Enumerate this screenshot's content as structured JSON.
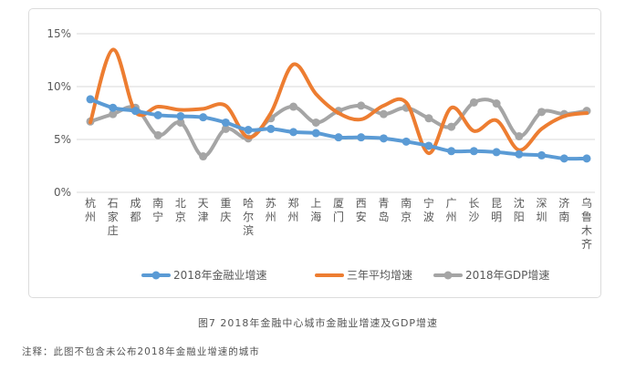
{
  "chart_data": {
    "type": "line",
    "categories": [
      "杭州",
      "石家庄",
      "成都",
      "南宁",
      "北京",
      "天津",
      "重庆",
      "哈尔滨",
      "苏州",
      "郑州",
      "上海",
      "厦门",
      "西安",
      "青岛",
      "南京",
      "宁波",
      "广州",
      "长沙",
      "昆明",
      "沈阳",
      "深圳",
      "济南",
      "乌鲁木齐"
    ],
    "ylim": [
      0,
      15
    ],
    "yticks": [
      "0%",
      "5%",
      "10%",
      "15%"
    ],
    "grid": true,
    "legend_position": "bottom",
    "series": [
      {
        "name": "2018年金融业增速",
        "color": "#5b9bd5",
        "marker": "circle",
        "values": [
          8.8,
          8.0,
          7.7,
          7.3,
          7.2,
          7.1,
          6.6,
          5.9,
          6.0,
          5.7,
          5.6,
          5.2,
          5.2,
          5.1,
          4.8,
          4.4,
          3.9,
          3.9,
          3.8,
          3.6,
          3.5,
          3.2,
          3.2
        ]
      },
      {
        "name": "三年平均增速",
        "color": "#ed7d31",
        "marker": "none",
        "values": [
          6.6,
          13.5,
          7.6,
          8.1,
          7.8,
          7.9,
          8.2,
          5.2,
          7.5,
          12.1,
          9.3,
          7.5,
          6.9,
          8.2,
          8.5,
          3.7,
          8.0,
          5.8,
          6.8,
          4.0,
          6.0,
          7.2,
          7.5
        ]
      },
      {
        "name": "2018年GDP增速",
        "color": "#a5a5a5",
        "marker": "circle",
        "values": [
          6.7,
          7.4,
          8.0,
          5.4,
          6.6,
          3.4,
          6.0,
          5.1,
          7.0,
          8.1,
          6.6,
          7.7,
          8.2,
          7.4,
          8.0,
          7.0,
          6.2,
          8.5,
          8.4,
          5.3,
          7.6,
          7.4,
          7.7
        ]
      }
    ]
  },
  "caption": "图7 2018年金融中心城市金融业增速及GDP增速",
  "note": "注释：此图不包含未公布2018年金融业增速的城市"
}
